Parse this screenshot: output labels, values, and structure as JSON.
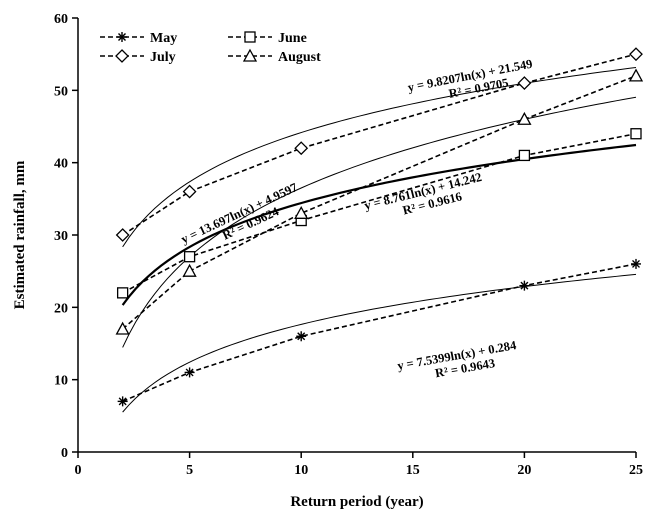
{
  "chart_data": {
    "type": "scatter",
    "xlabel": "Return period (year)",
    "ylabel": "Estimated rainfall, mm",
    "xlim": [
      0,
      25
    ],
    "ylim": [
      0,
      60
    ],
    "xticks": [
      0,
      5,
      10,
      15,
      20,
      25
    ],
    "yticks": [
      0,
      10,
      20,
      30,
      40,
      50,
      60
    ],
    "grid": false,
    "legend_position": "top-left",
    "x": [
      2,
      5,
      10,
      20,
      25
    ],
    "series": [
      {
        "name": "May",
        "marker": "asterisk",
        "values": [
          7,
          11,
          16,
          23,
          26
        ],
        "trend": {
          "a": 7.5399,
          "b": 0.284,
          "bold": false
        }
      },
      {
        "name": "June",
        "marker": "square",
        "values": [
          22,
          27,
          32,
          41,
          44
        ],
        "trend": {
          "a": 8.761,
          "b": 14.242,
          "bold": true
        }
      },
      {
        "name": "July",
        "marker": "diamond",
        "values": [
          30,
          36,
          42,
          51,
          55
        ],
        "trend": {
          "a": 9.8207,
          "b": 21.549,
          "bold": false
        }
      },
      {
        "name": "August",
        "marker": "triangle",
        "values": [
          17,
          25,
          33,
          46,
          52
        ],
        "trend": {
          "a": 13.697,
          "b": 4.9597,
          "bold": false
        }
      }
    ],
    "annotations": [
      {
        "eq": "y = 9.8207ln(x) + 21.549",
        "r2": "R² = 0.9705",
        "anchor_x": 17.6,
        "anchor_y": 51.5,
        "angle": -11
      },
      {
        "eq": "y = 13.697ln(x) + 4.9597",
        "r2": "R² = 0.9624",
        "anchor_x": 7.3,
        "anchor_y": 32.5,
        "angle": -25
      },
      {
        "eq": "y = 8.761ln(x) + 14.242",
        "r2": "R² = 0.9616",
        "anchor_x": 15.5,
        "anchor_y": 35.5,
        "angle": -14
      },
      {
        "eq": "y = 7.5399ln(x) + 0.284",
        "r2": "R² = 0.9643",
        "anchor_x": 17.0,
        "anchor_y": 12.8,
        "angle": -10
      }
    ]
  }
}
